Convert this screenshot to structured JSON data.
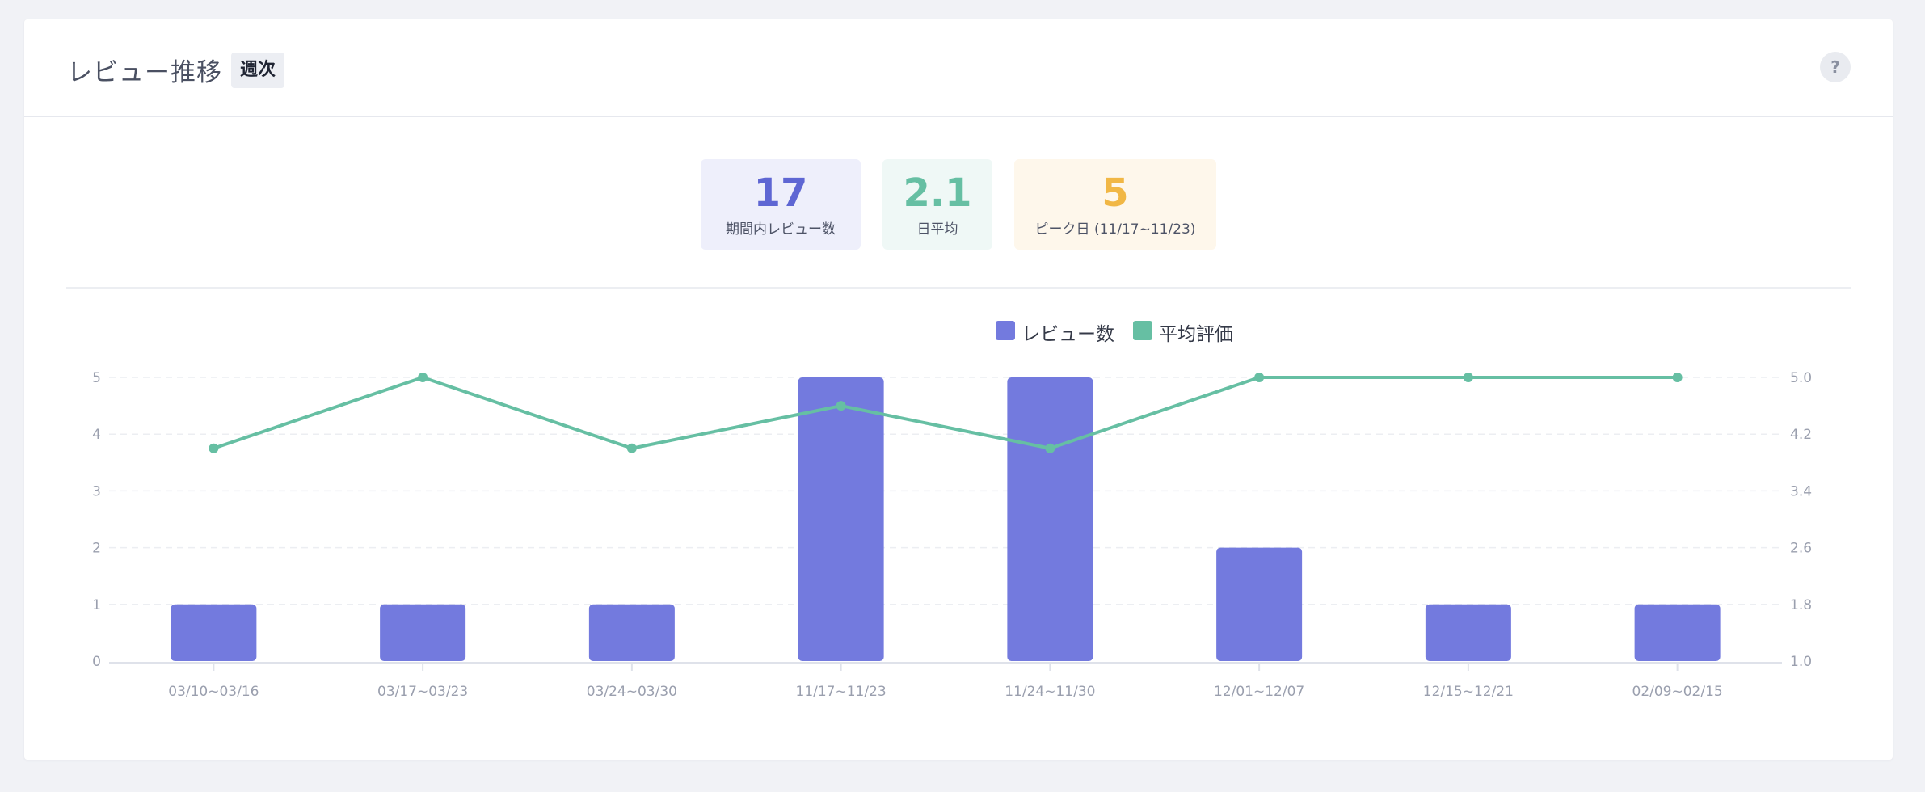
{
  "header": {
    "title": "レビュー推移",
    "period_badge": "週次",
    "help_label": "?"
  },
  "stats": {
    "total": {
      "value": "17",
      "label": "期間内レビュー数"
    },
    "daily_avg": {
      "value": "2.1",
      "label": "日平均"
    },
    "peak": {
      "value": "5",
      "label": "ピーク日 (11/17~11/23)"
    }
  },
  "colors": {
    "bar": "#737ade",
    "line": "#66bfa3",
    "grid": "#eceef2",
    "axis_text": "#9a9fae"
  },
  "chart_data": {
    "type": "bar",
    "title": "",
    "xlabel": "",
    "ylabel": "",
    "categories": [
      "03/10~03/16",
      "03/17~03/23",
      "03/24~03/30",
      "11/17~11/23",
      "11/24~11/30",
      "12/01~12/07",
      "12/15~12/21",
      "02/09~02/15"
    ],
    "series": [
      {
        "name": "レビュー数",
        "type": "bar",
        "axis": "left",
        "values": [
          1,
          1,
          1,
          5,
          5,
          2,
          1,
          1
        ]
      },
      {
        "name": "平均評価",
        "type": "line",
        "axis": "right",
        "values": [
          4.0,
          5.0,
          4.0,
          4.6,
          4.0,
          5.0,
          5.0,
          5.0
        ]
      }
    ],
    "ylim": [
      0,
      5
    ],
    "y_ticks": [
      "0",
      "1",
      "2",
      "3",
      "4",
      "5"
    ],
    "y2lim": [
      1.0,
      5.0
    ],
    "y2_ticks": [
      "1.0",
      "1.8",
      "2.6",
      "3.4",
      "4.2",
      "5.0"
    ],
    "grid": true,
    "legend": "top-center"
  }
}
